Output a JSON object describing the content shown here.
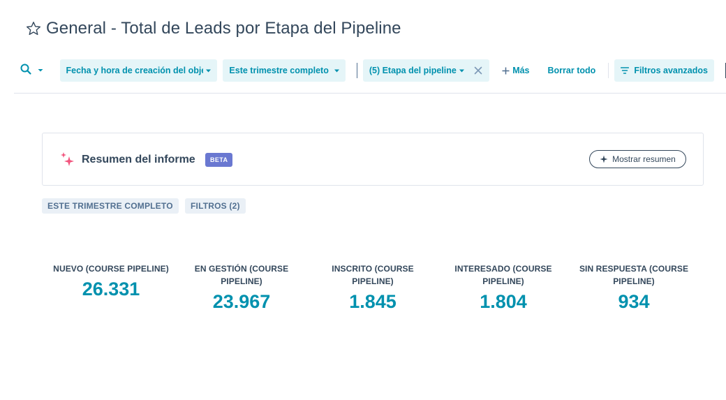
{
  "header": {
    "title": "General - Total de Leads por Etapa del Pipeline"
  },
  "filters": {
    "date_property": "Fecha y hora de creación del obje",
    "date_range": "Este trimestre completo",
    "pipeline_stage": "(5) Etapa del pipeline",
    "more_label": "Más",
    "clear_label": "Borrar todo",
    "advanced_label": "Filtros avanzados"
  },
  "summary": {
    "title": "Resumen del informe",
    "badge": "BETA",
    "show_button": "Mostrar resumen"
  },
  "tags": {
    "period": "ESTE TRIMESTRE COMPLETO",
    "filters": "FILTROS (2)"
  },
  "kpis": [
    {
      "label": "NUEVO (COURSE PIPELINE)",
      "value": "26.331"
    },
    {
      "label": "EN GESTIÓN (COURSE PIPELINE)",
      "value": "23.967"
    },
    {
      "label": "INSCRITO (COURSE PIPELINE)",
      "value": "1.845"
    },
    {
      "label": "INTERESADO (COURSE PIPELINE)",
      "value": "1.804"
    },
    {
      "label": "SIN RESPUESTA (COURSE PIPELINE)",
      "value": "934"
    }
  ],
  "colors": {
    "accent": "#0091ae",
    "pill_bg": "#e5f5f8",
    "text": "#33475b",
    "beta": "#6a78d1",
    "sparkle": "#f2547d"
  },
  "icons": [
    "star-icon",
    "search-icon",
    "chevron-down-icon",
    "close-icon",
    "plus-icon",
    "filter-lines-icon",
    "sparkle-icon",
    "ai-sparkle-icon"
  ]
}
